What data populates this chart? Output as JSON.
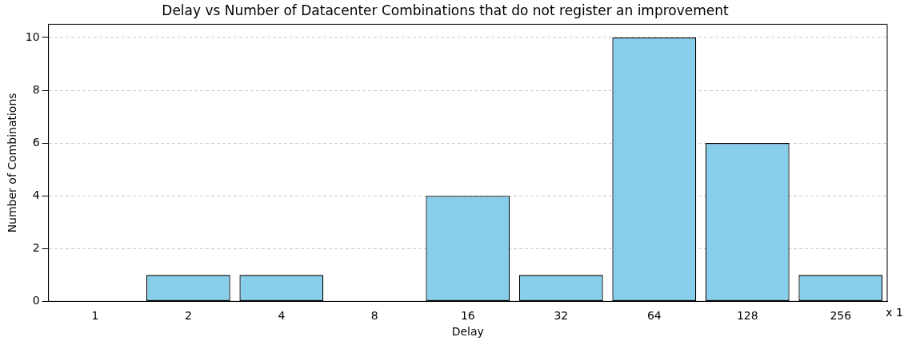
{
  "chart_data": {
    "type": "bar",
    "title": "Delay vs Number of Datacenter Combinations that do not register an improvement",
    "xlabel": "Delay",
    "ylabel": "Number of Combinations",
    "categories": [
      "1",
      "2",
      "4",
      "8",
      "16",
      "32",
      "64",
      "128",
      "256"
    ],
    "values": [
      0,
      1,
      1,
      0,
      4,
      1,
      10,
      6,
      1
    ],
    "color": "#87ceeb",
    "ylim": [
      0,
      10.5
    ],
    "yticks": [
      0,
      2,
      4,
      6,
      8,
      10
    ],
    "grid": "y",
    "legend": false,
    "annotations": [
      "x 1"
    ]
  }
}
